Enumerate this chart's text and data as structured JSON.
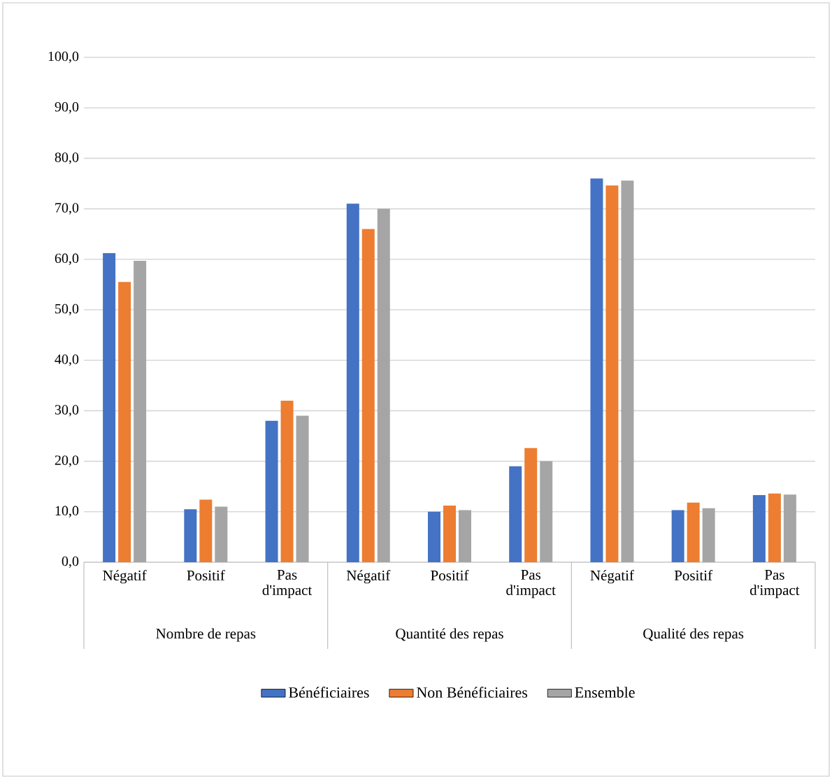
{
  "chart_data": {
    "type": "bar",
    "categories": [
      "Négatif",
      "Positif",
      "Pas d'impact",
      "Négatif",
      "Positif",
      "Pas d'impact",
      "Négatif",
      "Positif",
      "Pas d'impact"
    ],
    "series": [
      {
        "name": "Bénéficiaires",
        "color": "#4472c4",
        "values": [
          61.2,
          10.5,
          28.0,
          71.0,
          10.0,
          19.0,
          76.0,
          10.3,
          13.3
        ]
      },
      {
        "name": "Non Bénéficiaires",
        "color": "#ed7d31",
        "values": [
          55.5,
          12.4,
          32.0,
          66.0,
          11.2,
          22.6,
          74.6,
          11.8,
          13.6
        ]
      },
      {
        "name": "Ensemble",
        "color": "#a5a5a5",
        "values": [
          59.7,
          11.0,
          29.0,
          70.0,
          10.3,
          20.0,
          75.6,
          10.7,
          13.4
        ]
      }
    ],
    "annotations": [
      "Nombre de repas",
      "Quantité des repas",
      "Qualité des repas"
    ],
    "ylim": [
      0,
      100
    ],
    "yticks": [
      {
        "value": 0,
        "label": "0,0"
      },
      {
        "value": 10,
        "label": "10,0"
      },
      {
        "value": 20,
        "label": "20,0"
      },
      {
        "value": 30,
        "label": "30,0"
      },
      {
        "value": 40,
        "label": "40,0"
      },
      {
        "value": 50,
        "label": "50,0"
      },
      {
        "value": 60,
        "label": "60,0"
      },
      {
        "value": 70,
        "label": "70,0"
      },
      {
        "value": 80,
        "label": "80,0"
      },
      {
        "value": 90,
        "label": "90,0"
      },
      {
        "value": 100,
        "label": "100,0"
      }
    ],
    "grid": "y",
    "legend": "bottom"
  }
}
